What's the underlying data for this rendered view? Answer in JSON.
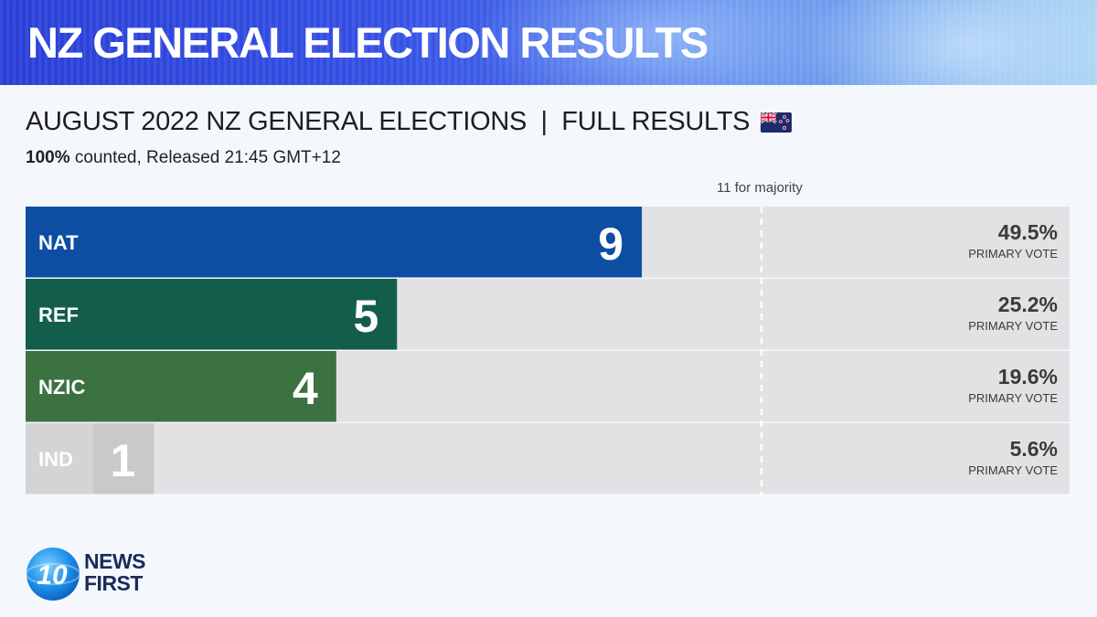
{
  "banner": {
    "title": "NZ GENERAL ELECTION RESULTS"
  },
  "subtitle": "AUGUST 2022 NZ GENERAL ELECTIONS  |  FULL RESULTS",
  "status": {
    "counted": "100%",
    "rest": " counted, Released 21:45 GMT+12"
  },
  "majority_label": "11 for majority",
  "logo": {
    "line1": "NEWS",
    "line2": "FIRST",
    "badge": "10"
  },
  "colors": {
    "banner": "#2f48dd",
    "track": "#e2e2e4"
  },
  "chart_data": {
    "type": "bar",
    "orientation": "horizontal",
    "categories": [
      "NAT",
      "REF",
      "NZIC",
      "IND"
    ],
    "values": [
      9,
      5,
      4,
      1
    ],
    "primary_vote": [
      "49.5%",
      "25.2%",
      "19.6%",
      "5.6%"
    ],
    "vote_label": "PRIMARY VOTE",
    "colors": [
      "#0d4ea3",
      "#125e4b",
      "#3c7241",
      "#c9c9c9"
    ],
    "majority": 11,
    "xlim": [
      0,
      20
    ]
  }
}
